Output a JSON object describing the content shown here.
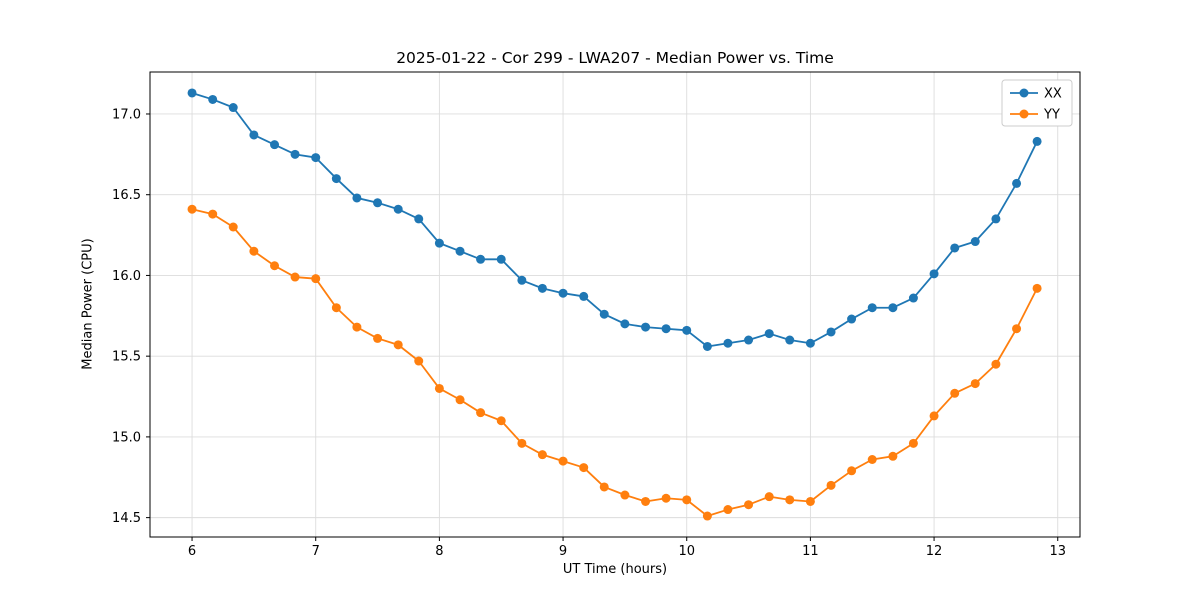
{
  "chart_data": {
    "type": "line",
    "title": "2025-01-22 - Cor 299 - LWA207 - Median Power vs. Time",
    "xlabel": "UT Time (hours)",
    "ylabel": "Median Power (CPU)",
    "xlim": [
      5.66,
      13.18
    ],
    "ylim": [
      14.38,
      17.26
    ],
    "xticks": [
      6,
      7,
      8,
      9,
      10,
      11,
      12,
      13
    ],
    "yticks": [
      14.5,
      15.0,
      15.5,
      16.0,
      16.5,
      17.0
    ],
    "grid": true,
    "legend_position": "upper right",
    "x": [
      6.0,
      6.167,
      6.333,
      6.5,
      6.667,
      6.833,
      7.0,
      7.167,
      7.333,
      7.5,
      7.667,
      7.833,
      8.0,
      8.167,
      8.333,
      8.5,
      8.667,
      8.833,
      9.0,
      9.167,
      9.333,
      9.5,
      9.667,
      9.833,
      10.0,
      10.167,
      10.333,
      10.5,
      10.667,
      10.833,
      11.0,
      11.167,
      11.333,
      11.5,
      11.667,
      11.833,
      12.0,
      12.167,
      12.333,
      12.5,
      12.667,
      12.833
    ],
    "series": [
      {
        "name": "XX",
        "color": "#1f77b4",
        "values": [
          17.13,
          17.09,
          17.04,
          16.87,
          16.81,
          16.75,
          16.73,
          16.6,
          16.48,
          16.45,
          16.41,
          16.35,
          16.2,
          16.15,
          16.1,
          16.1,
          15.97,
          15.92,
          15.89,
          15.87,
          15.76,
          15.7,
          15.68,
          15.67,
          15.66,
          15.56,
          15.58,
          15.6,
          15.64,
          15.6,
          15.58,
          15.65,
          15.73,
          15.8,
          15.8,
          15.86,
          16.01,
          16.17,
          16.21,
          16.35,
          16.57,
          16.83
        ]
      },
      {
        "name": "YY",
        "color": "#ff7f0e",
        "values": [
          16.41,
          16.38,
          16.3,
          16.15,
          16.06,
          15.99,
          15.98,
          15.8,
          15.68,
          15.61,
          15.57,
          15.47,
          15.3,
          15.23,
          15.15,
          15.1,
          14.96,
          14.89,
          14.85,
          14.81,
          14.69,
          14.64,
          14.6,
          14.62,
          14.61,
          14.51,
          14.55,
          14.58,
          14.63,
          14.61,
          14.6,
          14.7,
          14.79,
          14.86,
          14.88,
          14.96,
          15.13,
          15.27,
          15.33,
          15.45,
          15.67,
          15.92
        ]
      }
    ],
    "styles": {
      "grid_color": "#dcdcdc",
      "spine_color": "#000000",
      "tick_label_color": "#000000",
      "legend_border_color": "#cccccc",
      "legend_background": "#ffffff",
      "marker_radius": 4.5,
      "line_width": 1.8
    }
  }
}
